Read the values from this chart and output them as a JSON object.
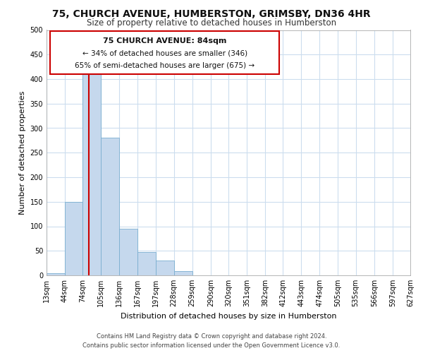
{
  "title": "75, CHURCH AVENUE, HUMBERSTON, GRIMSBY, DN36 4HR",
  "subtitle": "Size of property relative to detached houses in Humberston",
  "xlabel": "Distribution of detached houses by size in Humberston",
  "ylabel": "Number of detached properties",
  "footer_line1": "Contains HM Land Registry data © Crown copyright and database right 2024.",
  "footer_line2": "Contains public sector information licensed under the Open Government Licence v3.0.",
  "bar_left_edges": [
    13,
    44,
    74,
    105,
    136,
    167,
    197,
    228,
    259,
    290,
    320,
    351,
    382,
    412,
    443,
    474,
    505,
    535,
    566,
    597
  ],
  "bar_widths": [
    31,
    30,
    31,
    31,
    31,
    30,
    31,
    31,
    31,
    30,
    31,
    31,
    30,
    31,
    31,
    31,
    30,
    31,
    31,
    30
  ],
  "bar_heights": [
    5,
    150,
    420,
    280,
    95,
    48,
    30,
    8,
    0,
    0,
    0,
    0,
    0,
    0,
    0,
    0,
    0,
    0,
    0,
    0
  ],
  "bar_color": "#c5d8ed",
  "bar_edge_color": "#7aaed0",
  "tick_labels": [
    "13sqm",
    "44sqm",
    "74sqm",
    "105sqm",
    "136sqm",
    "167sqm",
    "197sqm",
    "228sqm",
    "259sqm",
    "290sqm",
    "320sqm",
    "351sqm",
    "382sqm",
    "412sqm",
    "443sqm",
    "474sqm",
    "505sqm",
    "535sqm",
    "566sqm",
    "597sqm",
    "627sqm"
  ],
  "ylim": [
    0,
    500
  ],
  "yticks": [
    0,
    50,
    100,
    150,
    200,
    250,
    300,
    350,
    400,
    450,
    500
  ],
  "xlim_min": 13,
  "xlim_max": 627,
  "property_line_x": 84,
  "property_line_color": "#cc0000",
  "annotation_title": "75 CHURCH AVENUE: 84sqm",
  "annotation_line1": "← 34% of detached houses are smaller (346)",
  "annotation_line2": "65% of semi-detached houses are larger (675) →",
  "background_color": "#ffffff",
  "grid_color": "#ccddee",
  "title_fontsize": 10,
  "subtitle_fontsize": 8.5,
  "ylabel_fontsize": 8,
  "xlabel_fontsize": 8,
  "tick_fontsize": 7,
  "footer_fontsize": 6,
  "ann_title_fontsize": 8,
  "ann_text_fontsize": 7.5
}
